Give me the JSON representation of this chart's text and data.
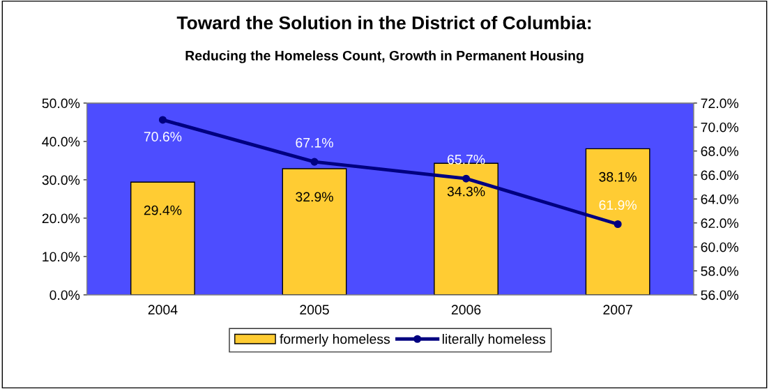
{
  "chart_data": {
    "type": "bar",
    "title": "Toward the Solution in the District of Columbia:",
    "subtitle": "Reducing the Homeless Count, Growth in Permanent Housing",
    "categories": [
      "2004",
      "2005",
      "2006",
      "2007"
    ],
    "series": [
      {
        "name": "formerly homeless",
        "color": "#ffcc33",
        "values": [
          29.4,
          32.9,
          34.3,
          38.1
        ],
        "value_labels": [
          "29.4%",
          "32.9%",
          "34.3%",
          "38.1%"
        ]
      },
      {
        "name": "literally homeless",
        "type": "line",
        "axis": "y2",
        "color": "#000080",
        "marker": "circle",
        "values": [
          70.6,
          67.1,
          65.7,
          61.9
        ],
        "value_labels": [
          "70.6%",
          "67.1%",
          "65.7%",
          "61.9%"
        ]
      }
    ],
    "ylim": [
      0,
      50
    ],
    "yticks": [
      {
        "value": 0,
        "label": "0.0%"
      },
      {
        "value": 10,
        "label": "10.0%"
      },
      {
        "value": 20,
        "label": "20.0%"
      },
      {
        "value": 30,
        "label": "30.0%"
      },
      {
        "value": 40,
        "label": "40.0%"
      },
      {
        "value": 50,
        "label": "50.0%"
      }
    ],
    "y2lim": [
      56,
      72
    ],
    "y2ticks": [
      {
        "value": 56,
        "label": "56.0%"
      },
      {
        "value": 58,
        "label": "58.0%"
      },
      {
        "value": 60,
        "label": "60.0%"
      },
      {
        "value": 62,
        "label": "62.0%"
      },
      {
        "value": 64,
        "label": "64.0%"
      },
      {
        "value": 66,
        "label": "66.0%"
      },
      {
        "value": 68,
        "label": "68.0%"
      },
      {
        "value": 70,
        "label": "70.0%"
      },
      {
        "value": 72,
        "label": "72.0%"
      }
    ],
    "grid": false,
    "legend": "bottom"
  }
}
